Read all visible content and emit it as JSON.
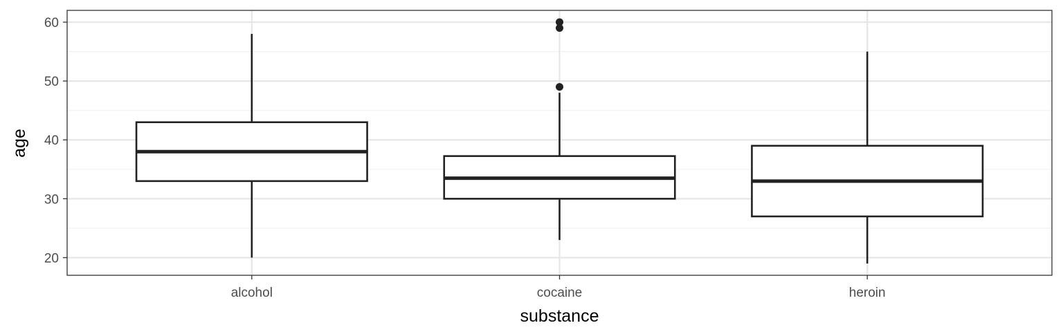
{
  "chart_data": {
    "type": "boxplot",
    "xlabel": "substance",
    "ylabel": "age",
    "ylim": [
      17,
      62
    ],
    "yticks": [
      20,
      30,
      40,
      50,
      60
    ],
    "categories": [
      "alcohol",
      "cocaine",
      "heroin"
    ],
    "boxes": [
      {
        "category": "alcohol",
        "min": 20,
        "q1": 33,
        "median": 38,
        "q3": 43,
        "max": 58,
        "outliers": []
      },
      {
        "category": "cocaine",
        "min": 23,
        "q1": 30,
        "median": 33.5,
        "q3": 37.25,
        "max": 48,
        "outliers": [
          49,
          59,
          60
        ]
      },
      {
        "category": "heroin",
        "min": 19,
        "q1": 27,
        "median": 33,
        "q3": 39,
        "max": 55,
        "outliers": []
      }
    ],
    "grid": true,
    "theme": "bw"
  }
}
